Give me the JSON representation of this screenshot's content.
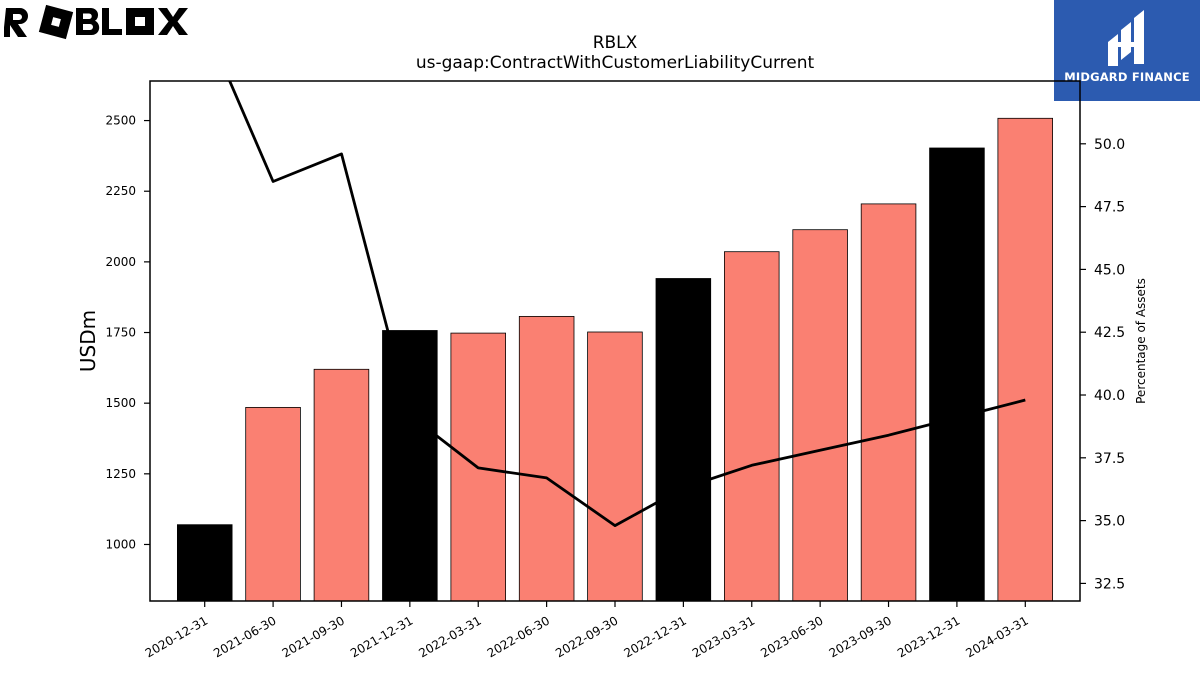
{
  "logos": {
    "left": "ROBLOX",
    "right": "MIDGARD FINANCE"
  },
  "colors": {
    "bar_annual": "#000000",
    "bar_quarter": "#fa8072",
    "line": "#000000",
    "midgard_bg": "#2c5bb0"
  },
  "chart_data": {
    "type": "bar",
    "title": "RBLX",
    "subtitle": "us-gaap:ContractWithCustomerLiabilityCurrent",
    "ylabel": "USDm",
    "y2label": "Percentage of Assets",
    "ylim": [
      800,
      2640
    ],
    "y2lim": [
      31.8,
      52.5
    ],
    "yticks": [
      1000,
      1250,
      1500,
      1750,
      2000,
      2250,
      2500
    ],
    "y2ticks": [
      "32.5",
      "35.0",
      "37.5",
      "40.0",
      "42.5",
      "45.0",
      "47.5",
      "50.0"
    ],
    "categories": [
      "2020-12-31",
      "2021-06-30",
      "2021-09-30",
      "2021-12-31",
      "2022-03-31",
      "2022-06-30",
      "2022-09-30",
      "2022-12-31",
      "2023-03-31",
      "2023-06-30",
      "2023-09-30",
      "2023-12-31",
      "2024-03-31"
    ],
    "values": [
      1070,
      1485,
      1620,
      1757,
      1748,
      1807,
      1752,
      1941,
      2036,
      2114,
      2205,
      2403,
      2508
    ],
    "annual": [
      true,
      false,
      false,
      true,
      false,
      false,
      false,
      true,
      false,
      false,
      false,
      true,
      false
    ],
    "line_values": [
      54.8,
      48.5,
      49.6,
      39.2,
      37.1,
      36.7,
      34.8,
      36.3,
      37.2,
      37.8,
      38.4,
      39.1,
      39.8
    ],
    "grid": false,
    "legend": "none"
  }
}
